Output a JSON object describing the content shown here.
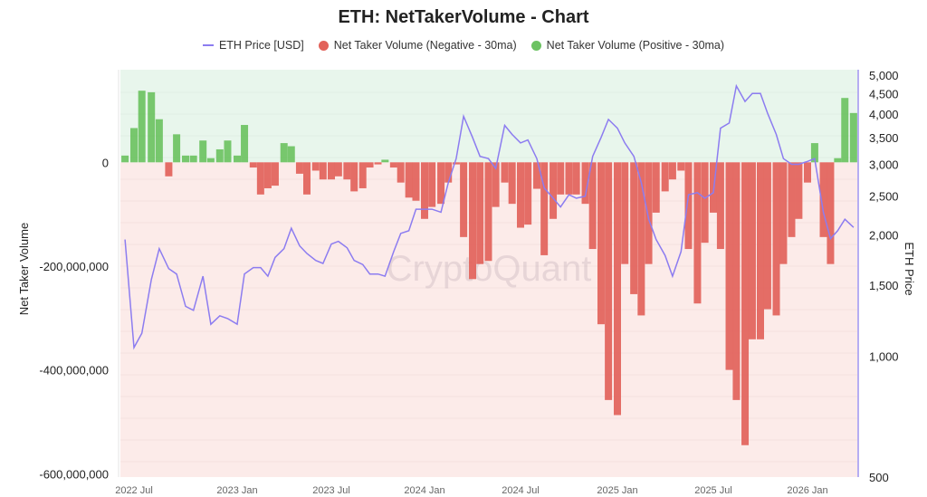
{
  "title": "ETH: NetTakerVolume - Chart",
  "legend": [
    {
      "label": "ETH Price [USD]",
      "color": "#8c7cf0",
      "shape": "line"
    },
    {
      "label": "Net Taker Volume (Negative - 30ma)",
      "color": "#e2625a",
      "shape": "circle"
    },
    {
      "label": "Net Taker Volume (Positive - 30ma)",
      "color": "#6cc262",
      "shape": "circle"
    }
  ],
  "watermark": "CryptoQuant",
  "chart_data": {
    "type": "bar+line",
    "title": "ETH: NetTakerVolume - Chart",
    "ylabel_left": "Net Taker Volume",
    "ylabel_right": "ETH Price",
    "y_left_ticks": [
      {
        "value": 0,
        "label": "0"
      },
      {
        "value": -200000000,
        "label": "-200,000,000"
      },
      {
        "value": -400000000,
        "label": "-400,000,000"
      },
      {
        "value": -600000000,
        "label": "-600,000,000"
      }
    ],
    "y_right_scale": "log",
    "y_right_range": [
      500,
      5000
    ],
    "y_right_ticks": [
      {
        "value": 5000,
        "label": "5,000"
      },
      {
        "value": 4500,
        "label": "4,500"
      },
      {
        "value": 4000,
        "label": "4,000"
      },
      {
        "value": 3500,
        "label": "3,500"
      },
      {
        "value": 3000,
        "label": "3,000"
      },
      {
        "value": 2500,
        "label": "2,500"
      },
      {
        "value": 2000,
        "label": "2,000"
      },
      {
        "value": 1500,
        "label": "1,500"
      },
      {
        "value": 1000,
        "label": "1,000"
      },
      {
        "value": 500,
        "label": "500"
      }
    ],
    "x_ticks": [
      {
        "date": "2022-07-01",
        "label": "2022 Jul"
      },
      {
        "date": "2023-01-01",
        "label": "2023 Jan"
      },
      {
        "date": "2023-07-01",
        "label": "2023 Jul"
      },
      {
        "date": "2024-01-01",
        "label": "2024 Jan"
      },
      {
        "date": "2024-07-01",
        "label": "2024 Jul"
      },
      {
        "date": "2025-01-01",
        "label": "2025 Jan"
      },
      {
        "date": "2025-07-01",
        "label": "2025 Jul"
      },
      {
        "date": "2026-01-01",
        "label": "2026 Jan"
      }
    ],
    "background": {
      "positive": "#e8f6ec",
      "negative": "#fcebe9"
    },
    "dates": [
      "2022-06-15",
      "2022-07-01",
      "2022-07-15",
      "2022-08-01",
      "2022-08-15",
      "2022-09-01",
      "2022-09-15",
      "2022-10-01",
      "2022-10-15",
      "2022-11-01",
      "2022-11-15",
      "2022-12-01",
      "2022-12-15",
      "2023-01-01",
      "2023-01-15",
      "2023-02-01",
      "2023-02-15",
      "2023-03-01",
      "2023-03-15",
      "2023-04-01",
      "2023-04-15",
      "2023-05-01",
      "2023-05-15",
      "2023-06-01",
      "2023-06-15",
      "2023-07-01",
      "2023-07-15",
      "2023-08-01",
      "2023-08-15",
      "2023-09-01",
      "2023-09-15",
      "2023-10-01",
      "2023-10-15",
      "2023-11-01",
      "2023-11-15",
      "2023-12-01",
      "2023-12-15",
      "2024-01-01",
      "2024-01-15",
      "2024-02-01",
      "2024-02-15",
      "2024-03-01",
      "2024-03-15",
      "2024-04-01",
      "2024-04-15",
      "2024-05-01",
      "2024-05-15",
      "2024-06-01",
      "2024-06-15",
      "2024-07-01",
      "2024-07-15",
      "2024-08-01",
      "2024-08-15",
      "2024-09-01",
      "2024-09-15",
      "2024-10-01",
      "2024-10-15",
      "2024-11-01",
      "2024-11-15",
      "2024-12-01",
      "2024-12-15",
      "2025-01-01",
      "2025-01-15",
      "2025-02-01",
      "2025-02-15",
      "2025-03-01",
      "2025-03-15",
      "2025-04-01",
      "2025-04-15",
      "2025-05-01",
      "2025-05-15",
      "2025-06-01",
      "2025-06-15",
      "2025-07-01",
      "2025-07-15",
      "2025-08-01",
      "2025-08-15",
      "2025-09-01",
      "2025-09-15",
      "2025-10-01",
      "2025-10-15",
      "2025-11-01",
      "2025-11-15",
      "2025-12-01",
      "2025-12-15",
      "2026-01-01",
      "2026-01-15",
      "2026-02-01",
      "2026-02-15",
      "2026-03-01",
      "2026-03-15",
      "2026-04-01"
    ],
    "series": [
      {
        "name": "ETH Price [USD]",
        "axis": "right",
        "type": "line",
        "color": "#8c7cf0",
        "values": [
          1950,
          1050,
          1140,
          1550,
          1850,
          1650,
          1600,
          1330,
          1300,
          1580,
          1200,
          1260,
          1240,
          1200,
          1600,
          1660,
          1660,
          1580,
          1760,
          1850,
          2080,
          1880,
          1800,
          1730,
          1700,
          1900,
          1930,
          1860,
          1730,
          1690,
          1600,
          1600,
          1580,
          1820,
          2020,
          2050,
          2320,
          2320,
          2320,
          2280,
          2700,
          3100,
          3950,
          3500,
          3140,
          3100,
          2930,
          3750,
          3560,
          3390,
          3450,
          3100,
          2620,
          2470,
          2350,
          2520,
          2470,
          2500,
          3140,
          3500,
          3880,
          3690,
          3390,
          3140,
          2700,
          2190,
          1950,
          1780,
          1580,
          1820,
          2520,
          2550,
          2470,
          2550,
          3690,
          3800,
          4700,
          4300,
          4500,
          4500,
          4020,
          3560,
          3100,
          3000,
          3000,
          3050,
          3100,
          2280,
          1960,
          2050,
          2190,
          2090
        ]
      },
      {
        "name": "Net Taker Volume (30ma)",
        "axis": "left",
        "type": "bar",
        "color_negative": "#e2625a",
        "color_positive": "#6cc262",
        "values": [
          13000000,
          66000000,
          138000000,
          135000000,
          83000000,
          -27000000,
          54000000,
          13000000,
          13000000,
          42000000,
          8000000,
          25000000,
          42000000,
          13000000,
          72000000,
          -10000000,
          -62000000,
          -50000000,
          -45000000,
          37000000,
          31000000,
          -22000000,
          -62000000,
          -16000000,
          -33000000,
          -33000000,
          -27000000,
          -33000000,
          -56000000,
          -50000000,
          -10000000,
          -4000000,
          5000000,
          -10000000,
          -39000000,
          -68000000,
          -74000000,
          -109000000,
          -86000000,
          -80000000,
          -39000000,
          -4000000,
          -144000000,
          -225000000,
          -196000000,
          -190000000,
          -86000000,
          -39000000,
          -80000000,
          -126000000,
          -120000000,
          -51000000,
          -179000000,
          -109000000,
          -62000000,
          -62000000,
          -62000000,
          -80000000,
          -167000000,
          -312000000,
          -458000000,
          -487000000,
          -196000000,
          -254000000,
          -295000000,
          -196000000,
          -97000000,
          -56000000,
          -33000000,
          -16000000,
          -167000000,
          -272000000,
          -155000000,
          -97000000,
          -167000000,
          -400000000,
          -458000000,
          -545000000,
          -341000000,
          -341000000,
          -283000000,
          -295000000,
          -196000000,
          -144000000,
          -109000000,
          -39000000,
          37000000,
          -144000000,
          -196000000,
          8000000,
          124000000,
          95000000
        ]
      }
    ]
  }
}
